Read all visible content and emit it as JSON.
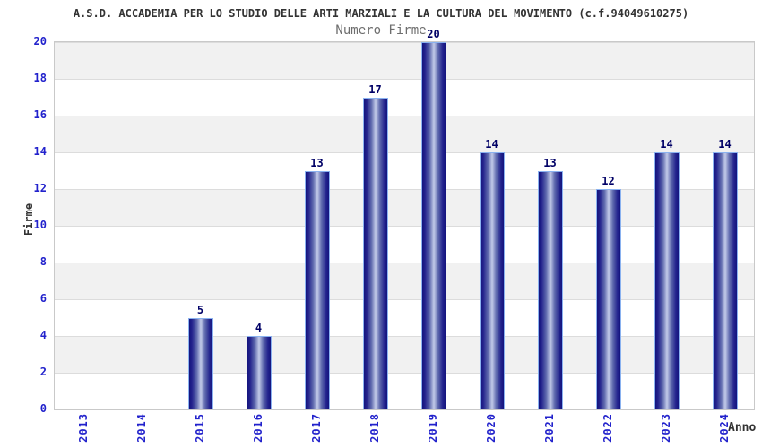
{
  "title": "A.S.D. ACCADEMIA PER LO STUDIO DELLE ARTI MARZIALI E LA CULTURA DEL MOVIMENTO (c.f.94049610275)",
  "chart_data": {
    "type": "bar",
    "title": "Numero Firme",
    "xlabel": "Anno",
    "ylabel": "Firme",
    "categories": [
      "2013",
      "2014",
      "2015",
      "2016",
      "2017",
      "2018",
      "2019",
      "2020",
      "2021",
      "2022",
      "2023",
      "2024"
    ],
    "values": [
      0,
      0,
      5,
      4,
      13,
      17,
      20,
      14,
      13,
      12,
      14,
      14
    ],
    "ylim": [
      0,
      20
    ],
    "ytick_step": 2,
    "yticks": [
      0,
      2,
      4,
      6,
      8,
      10,
      12,
      14,
      16,
      18,
      20
    ],
    "grid": true,
    "legend": "none",
    "bands": "alternating horizontal gray/white stripes",
    "colors": {
      "title": "#333333",
      "subtitle": "#6e6e6e",
      "ticks": "#2222cc",
      "value_labels": "#000066",
      "bar_dark": "#14147d",
      "bar_mid": "#5f6aae",
      "bar_light": "#c3cbe9",
      "bar_border": "#8ab2f0",
      "band_gray": "#f1f1f1",
      "grid": "#dcdcdc",
      "plot_border": "#c9c9c9"
    }
  }
}
